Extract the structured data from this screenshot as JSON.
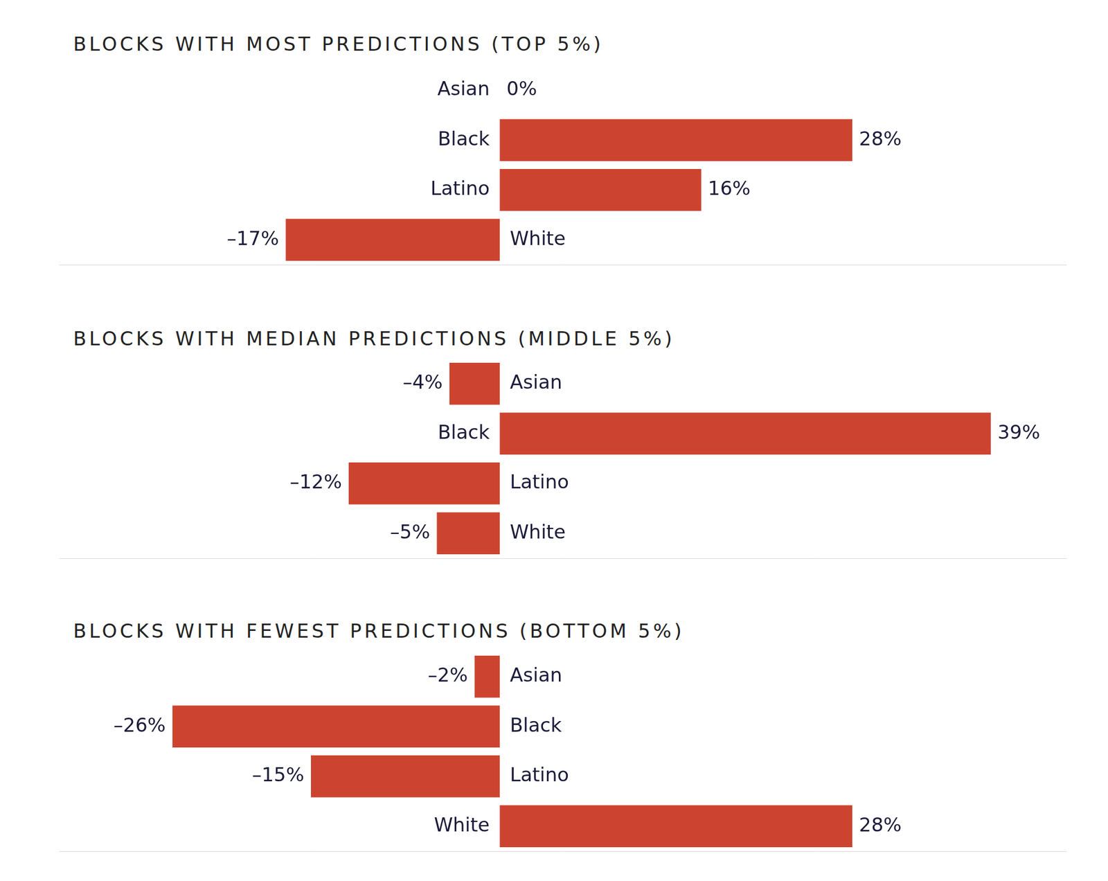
{
  "chart_data": [
    {
      "type": "bar",
      "title": "BLOCKS WITH MOST PREDICTIONS (TOP 5%)",
      "categories": [
        "Asian",
        "Black",
        "Latino",
        "White"
      ],
      "values": [
        0,
        28,
        16,
        -17
      ],
      "value_labels": [
        "0%",
        "28%",
        "16%",
        "–17%"
      ],
      "color": "#cc4430",
      "orientation": "horizontal",
      "data_labels": true,
      "tick_labels": "y",
      "xlim": [
        -35,
        45
      ]
    },
    {
      "type": "bar",
      "title": "BLOCKS WITH MEDIAN PREDICTIONS (MIDDLE 5%)",
      "categories": [
        "Asian",
        "Black",
        "Latino",
        "White"
      ],
      "values": [
        -4,
        39,
        -12,
        -5
      ],
      "value_labels": [
        "–4%",
        "39%",
        "–12%",
        "–5%"
      ],
      "color": "#cc4430",
      "orientation": "horizontal",
      "data_labels": true,
      "tick_labels": "y",
      "xlim": [
        -35,
        45
      ]
    },
    {
      "type": "bar",
      "title": "BLOCKS WITH FEWEST PREDICTIONS (BOTTOM 5%)",
      "categories": [
        "Asian",
        "Black",
        "Latino",
        "White"
      ],
      "values": [
        -2,
        -26,
        -15,
        28
      ],
      "value_labels": [
        "–2%",
        "–26%",
        "–15%",
        "28%"
      ],
      "color": "#cc4430",
      "orientation": "horizontal",
      "data_labels": true,
      "tick_labels": "y",
      "xlim": [
        -35,
        45
      ]
    }
  ]
}
